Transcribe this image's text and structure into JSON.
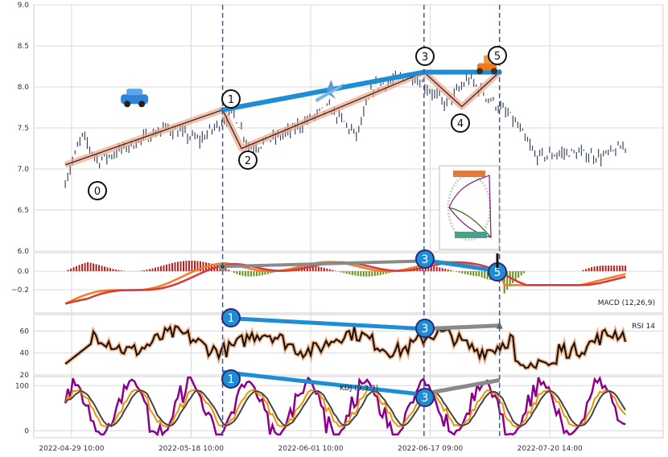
{
  "chart_data": [
    {
      "type": "line",
      "panel": "price",
      "ylim": [
        6.0,
        9.0
      ],
      "yticks": [
        "9.0",
        "8.5",
        "8.0",
        "7.5",
        "7.0",
        "6.5",
        "6.0"
      ],
      "wave_points": [
        {
          "label": "0",
          "x": 0.05,
          "y": 7.05
        },
        {
          "label": "1",
          "x": 0.3,
          "y": 7.72
        },
        {
          "label": "2",
          "x": 0.33,
          "y": 7.25
        },
        {
          "label": "3",
          "x": 0.62,
          "y": 8.18
        },
        {
          "label": "4",
          "x": 0.68,
          "y": 7.76
        },
        {
          "label": "5",
          "x": 0.74,
          "y": 8.18
        }
      ],
      "trend_line": [
        {
          "x": 0.3,
          "y": 7.72
        },
        {
          "x": 0.62,
          "y": 8.18
        },
        {
          "x": 0.74,
          "y": 8.18
        }
      ],
      "markers": [
        {
          "name": "car",
          "x": 0.16,
          "y": 7.85
        },
        {
          "name": "airplane",
          "x": 0.47,
          "y": 7.95
        },
        {
          "name": "scooter",
          "x": 0.72,
          "y": 8.25
        }
      ]
    },
    {
      "type": "bar",
      "panel": "macd",
      "label": "MACD (12,26,9)",
      "ylim": [
        -0.45,
        0.2
      ],
      "yticks": [
        "0.0",
        "−0.2"
      ],
      "wave_points": [
        {
          "label": "3",
          "x": 0.62,
          "y": 0.12
        },
        {
          "label": "5",
          "x": 0.74,
          "y": 0.0
        }
      ],
      "divergence_line": [
        {
          "x": 0.3,
          "y": 0.05
        },
        {
          "x": 0.62,
          "y": 0.11
        }
      ]
    },
    {
      "type": "line",
      "panel": "rsi",
      "label": "RSI 14",
      "ylim": [
        20,
        75
      ],
      "yticks": [
        "60",
        "40",
        "20"
      ],
      "wave_points": [
        {
          "label": "1",
          "x": 0.3,
          "y": 72
        },
        {
          "label": "3",
          "x": 0.62,
          "y": 62
        }
      ],
      "divergence_line": [
        {
          "x": 0.62,
          "y": 62
        },
        {
          "x": 0.74,
          "y": 65
        }
      ]
    },
    {
      "type": "line",
      "panel": "kdj",
      "label": "KDJ (9,3,3)",
      "ylim": [
        -15,
        120
      ],
      "yticks": [
        "100",
        "0"
      ],
      "wave_points": [
        {
          "label": "1",
          "x": 0.3,
          "y": 130
        },
        {
          "label": "3",
          "x": 0.62,
          "y": 80
        }
      ],
      "divergence_line": [
        {
          "x": 0.62,
          "y": 82
        },
        {
          "x": 0.74,
          "y": 112
        }
      ]
    }
  ],
  "x_axis": {
    "tick_labels": [
      {
        "x": 0.0,
        "label": "2022-04-29 10:00"
      },
      {
        "x": 0.2,
        "label": "2022-05-18 10:00"
      },
      {
        "x": 0.4,
        "label": "2022-06-01 10:00"
      },
      {
        "x": 0.6,
        "label": "2022-06-17 09:00"
      },
      {
        "x": 0.8,
        "label": "2022-07-20 14:00"
      }
    ],
    "vlines": [
      0.3,
      0.62,
      0.74
    ]
  },
  "colors": {
    "candle": "#3a4660",
    "wave_line": "#2a2a2a",
    "wave_glow": "#f2a486",
    "trend": "#1f8dd6",
    "macd_pos": "#b22222",
    "macd_neg": "#6a8f1a",
    "macd_dif": "#f47c20",
    "macd_dea": "#d63a3a",
    "rsi": "#111111",
    "rsi_glow": "#f5b183",
    "k": "#444444",
    "d": "#f39200",
    "j": "#8b008b",
    "grey": "#8a8a8a",
    "grid": "#d9d9d9"
  }
}
